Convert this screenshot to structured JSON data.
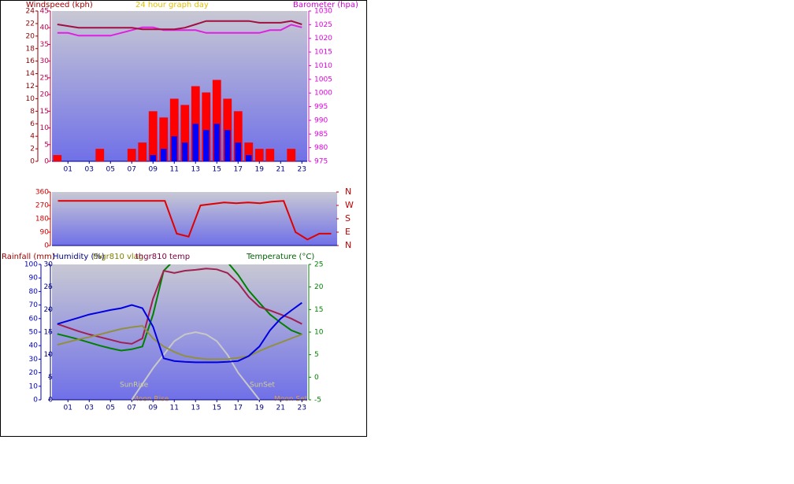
{
  "chart_data": [
    {
      "type": "bar",
      "title": "24 hour graph day",
      "y_label": "Windspeed (kph)",
      "y2_label": "Barometer (hpa)",
      "categories": [
        null,
        "01",
        null,
        "03",
        null,
        "05",
        null,
        "07",
        null,
        "09",
        null,
        "11",
        null,
        "13",
        null,
        "15",
        null,
        "17",
        null,
        "19",
        null,
        "21",
        null,
        "23"
      ],
      "ylim": [
        0,
        24
      ],
      "yticks": [
        0,
        2,
        4,
        6,
        8,
        10,
        12,
        14,
        16,
        18,
        20,
        22,
        24
      ],
      "y3lim": [
        0,
        45
      ],
      "y3ticks": [
        0,
        5,
        10,
        15,
        20,
        25,
        30,
        35,
        40,
        45
      ],
      "y2lim": [
        975,
        1030
      ],
      "y2ticks": [
        975,
        980,
        985,
        990,
        995,
        1000,
        1005,
        1010,
        1015,
        1020,
        1025,
        1030
      ],
      "series": [
        {
          "kind": "bar",
          "color": "#ff0000",
          "values": [
            1,
            0,
            0,
            0,
            2,
            0,
            0,
            2,
            3,
            8,
            7,
            10,
            9,
            12,
            11,
            13,
            10,
            8,
            3,
            2,
            2,
            0,
            2,
            0
          ]
        },
        {
          "kind": "bar",
          "color": "#0000ff",
          "values": [
            0,
            0,
            0,
            0,
            0,
            0,
            0,
            0,
            0,
            1,
            2,
            4,
            3,
            6,
            5,
            6,
            5,
            3,
            1,
            0,
            0,
            0,
            0,
            0
          ]
        },
        {
          "kind": "line",
          "axis": "y2",
          "color": "#e020e0",
          "values": [
            1022,
            1022,
            1021,
            1021,
            1021,
            1021,
            1022,
            1023,
            1024,
            1024,
            1023,
            1023,
            1023,
            1023,
            1022,
            1022,
            1022,
            1022,
            1022,
            1022,
            1023,
            1023,
            1025,
            1024
          ]
        },
        {
          "kind": "line",
          "axis": "y3",
          "color": "#a01040",
          "values": [
            41,
            40.5,
            40,
            40,
            40,
            40,
            40,
            40,
            39.5,
            39.5,
            39.5,
            39.5,
            40,
            41,
            42,
            42,
            42,
            42,
            42,
            41.5,
            41.5,
            41.5,
            42,
            41
          ]
        }
      ]
    },
    {
      "type": "line",
      "ylim": [
        0,
        360
      ],
      "yticks": [
        0,
        90,
        180,
        270,
        360
      ],
      "y2lim": [
        0,
        360
      ],
      "y2ticks": [
        {
          "value": 0,
          "label": "N"
        },
        {
          "value": 90,
          "label": "E"
        },
        {
          "value": 180,
          "label": "S"
        },
        {
          "value": 270,
          "label": "W"
        },
        {
          "value": 360,
          "label": "N"
        }
      ],
      "series": [
        {
          "color": "#e00000",
          "values": [
            300,
            300,
            300,
            300,
            300,
            300,
            300,
            300,
            300,
            300,
            80,
            60,
            270,
            280,
            290,
            285,
            290,
            285,
            295,
            300,
            90,
            40,
            80,
            80
          ]
        }
      ]
    },
    {
      "type": "line",
      "y_label": "Rainfall (mm)",
      "y3_label": "Humidity (%)",
      "series_labels": [
        "thgr810 vlag",
        "thgr810 temp"
      ],
      "y2_label": "Temperature (°C)",
      "annotations": [
        "SunRise",
        "SunSet",
        "Moon Rise",
        "Moon Set"
      ],
      "categories": [
        null,
        "01",
        null,
        "03",
        null,
        "05",
        null,
        "07",
        null,
        "09",
        null,
        "11",
        null,
        "13",
        null,
        "15",
        null,
        "17",
        null,
        "19",
        null,
        "21",
        null,
        "23"
      ],
      "ylim": [
        0,
        100
      ],
      "yticks": [
        0,
        10,
        20,
        30,
        40,
        50,
        60,
        70,
        80,
        90,
        100
      ],
      "y3lim": [
        0,
        30
      ],
      "y3ticks": [
        0,
        5,
        10,
        15,
        20,
        25,
        30
      ],
      "y2lim": [
        -5,
        25
      ],
      "y2ticks": [
        -5,
        0,
        5,
        10,
        15,
        20,
        25
      ],
      "series": [
        {
          "axis": "y2",
          "color": "#c8c8c8",
          "values": [
            null,
            null,
            null,
            null,
            null,
            null,
            null,
            -5,
            -1.5,
            2,
            5,
            8,
            9.5,
            10,
            9.5,
            8,
            5,
            1,
            -2,
            -5,
            null,
            null,
            null,
            null
          ]
        },
        {
          "axis": "y2",
          "color": "#008000",
          "values": [
            9.6,
            9,
            8.4,
            7.7,
            7,
            6.4,
            5.9,
            6.2,
            6.8,
            13.9,
            23.6,
            26,
            27,
            27,
            26.5,
            26,
            25.5,
            22.7,
            19.2,
            16.5,
            13.9,
            12.1,
            10.4,
            9.5
          ]
        },
        {
          "axis": "y2",
          "color": "#a02050",
          "values": [
            11.8,
            11,
            10.2,
            9.5,
            8.9,
            8.3,
            7.7,
            7.4,
            8.6,
            17.4,
            23.6,
            23.1,
            23.6,
            23.8,
            24.1,
            23.9,
            23.1,
            20.9,
            17.8,
            15.6,
            14.8,
            13.9,
            13,
            11.8
          ]
        },
        {
          "axis": "y2",
          "color": "#909040",
          "values": [
            7.2,
            7.8,
            8.4,
            8.9,
            9.5,
            10.1,
            10.7,
            11.1,
            11.4,
            8.6,
            6.8,
            5.6,
            4.7,
            4.3,
            4,
            4,
            4,
            4.3,
            4.7,
            5.8,
            6.8,
            7.7,
            8.6,
            9.5
          ]
        },
        {
          "axis": "y2",
          "color": "#0000e0",
          "values": [
            11.8,
            12.5,
            13.2,
            13.9,
            14.4,
            14.9,
            15.3,
            16,
            15.3,
            11.2,
            4.2,
            3.6,
            3.4,
            3.3,
            3.3,
            3.3,
            3.4,
            3.6,
            4.7,
            6.8,
            10.4,
            13,
            14.8,
            16.5
          ]
        }
      ]
    }
  ]
}
